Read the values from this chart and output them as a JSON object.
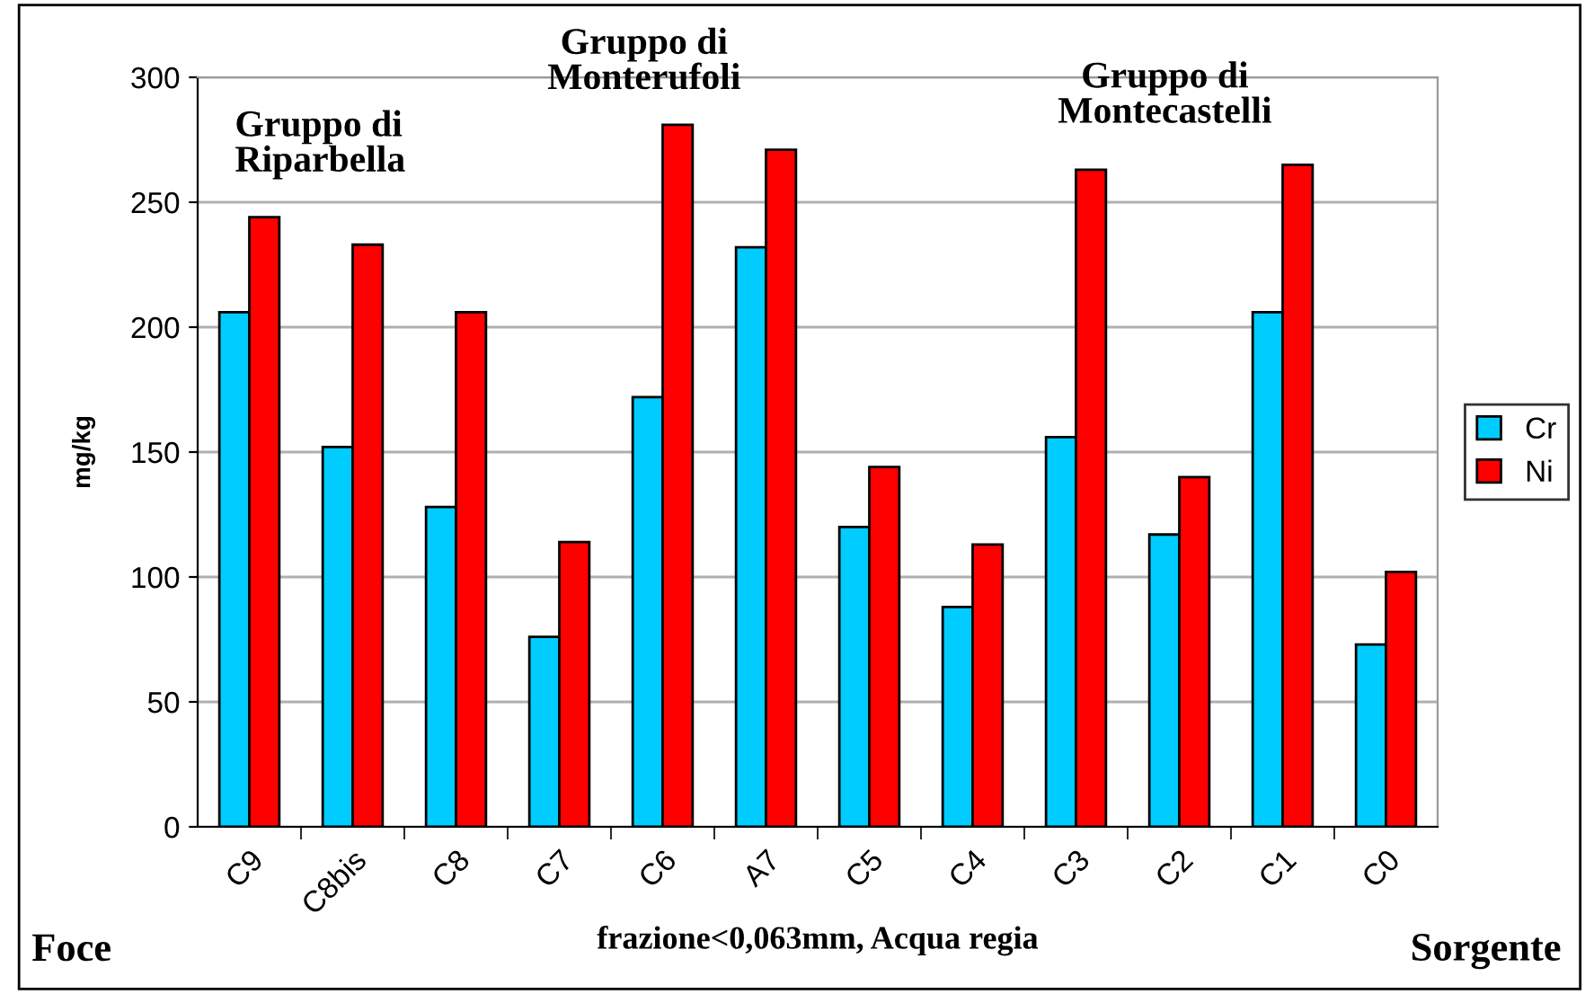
{
  "chart_data": {
    "type": "bar",
    "categories": [
      "C9",
      "C8bis",
      "C8",
      "C7",
      "C6",
      "A7",
      "C5",
      "C4",
      "C3",
      "C2",
      "C1",
      "C0"
    ],
    "series": [
      {
        "name": "Cr",
        "color": "#00ccff",
        "values": [
          206,
          152,
          128,
          76,
          172,
          232,
          120,
          88,
          156,
          117,
          206,
          73
        ]
      },
      {
        "name": "Ni",
        "color": "#ff0000",
        "values": [
          244,
          233,
          206,
          114,
          281,
          271,
          144,
          113,
          263,
          140,
          265,
          102
        ]
      }
    ],
    "ylabel": "mg/kg",
    "xlabel": "frazione<0,063mm, Acqua regia",
    "ylim": [
      0,
      300
    ],
    "yticks": [
      0,
      50,
      100,
      150,
      200,
      250,
      300
    ],
    "grid": "y",
    "legend": "right",
    "annotations": [
      "Gruppo di\nRiparbella",
      "Gruppo di\nMonterufoli",
      "Gruppo di\nMontecastelli",
      "Foce",
      "Sorgente"
    ]
  }
}
